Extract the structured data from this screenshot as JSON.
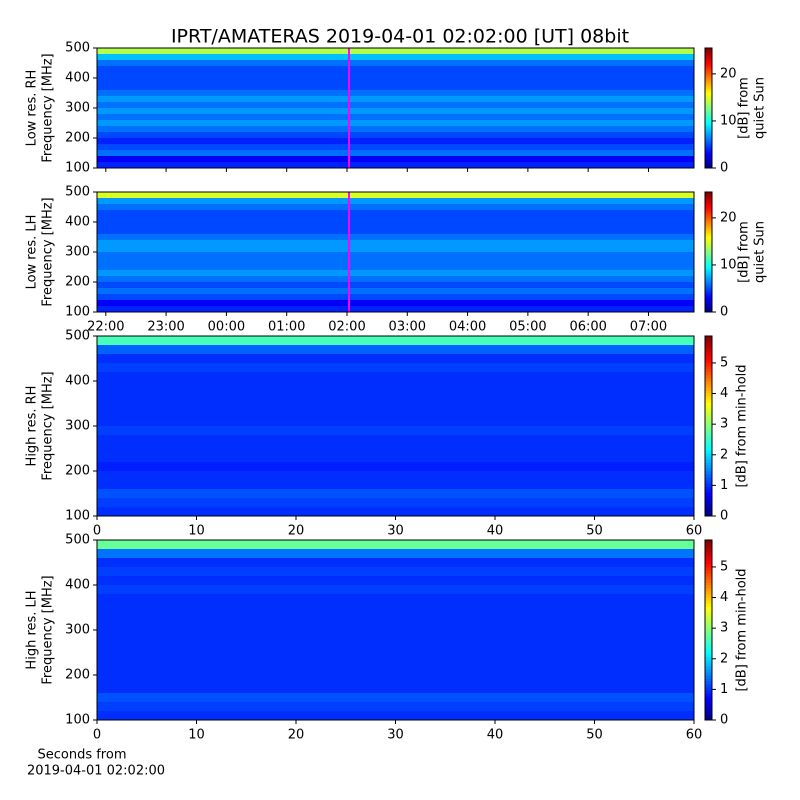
{
  "title": "IPRT/AMATERAS 2019-04-01 02:02:00 [UT]   08bit",
  "chart_data": [
    {
      "type": "heatmap",
      "ylabel": [
        "Low res. RH",
        "Frequency [MHz]"
      ],
      "xlim": [
        21.854,
        31.755
      ],
      "xticks": [
        22,
        23,
        24,
        25,
        26,
        27,
        28,
        29,
        30,
        31
      ],
      "ylim": [
        100,
        500
      ],
      "yticks": [
        100,
        200,
        300,
        400,
        500
      ],
      "y": [
        110,
        130,
        150,
        170,
        190,
        210,
        230,
        250,
        270,
        290,
        310,
        330,
        350,
        370,
        390,
        410,
        430,
        450,
        470,
        490
      ],
      "values": [
        4,
        3,
        6,
        5,
        4,
        5,
        6,
        7,
        6,
        7,
        6,
        7,
        6,
        5,
        5,
        5,
        5,
        6,
        8,
        14
      ],
      "marker_x": 26.033,
      "marker_color": "#ff00ff",
      "clim": [
        0,
        25.5
      ],
      "cticks": [
        0,
        10,
        20
      ],
      "clabel": [
        "[dB] from",
        "quiet Sun"
      ]
    },
    {
      "type": "heatmap",
      "ylabel": [
        "Low res. LH",
        "Frequency [MHz]"
      ],
      "xlim": [
        21.854,
        31.755
      ],
      "xticks": [
        {
          "value": 22,
          "label": "22:00"
        },
        {
          "value": 23,
          "label": "23:00"
        },
        {
          "value": 24,
          "label": "00:00"
        },
        {
          "value": 25,
          "label": "01:00"
        },
        {
          "value": 26,
          "label": "02:00"
        },
        {
          "value": 27,
          "label": "03:00"
        },
        {
          "value": 28,
          "label": "04:00"
        },
        {
          "value": 29,
          "label": "05:00"
        },
        {
          "value": 30,
          "label": "06:00"
        },
        {
          "value": 31,
          "label": "07:00"
        }
      ],
      "ylim": [
        100,
        500
      ],
      "yticks": [
        100,
        200,
        300,
        400,
        500
      ],
      "y": [
        110,
        130,
        150,
        170,
        190,
        210,
        230,
        250,
        270,
        290,
        310,
        330,
        350,
        370,
        390,
        410,
        430,
        450,
        470,
        490
      ],
      "values": [
        4,
        3,
        5,
        6,
        5,
        6,
        7,
        6,
        6,
        6,
        7,
        7,
        6,
        5,
        5,
        5,
        5,
        6,
        7,
        15
      ],
      "marker_x": 26.033,
      "marker_color": "#ff00ff",
      "clim": [
        0,
        25.5
      ],
      "cticks": [
        0,
        10,
        20
      ],
      "clabel": [
        "[dB] from",
        "quiet Sun"
      ]
    },
    {
      "type": "heatmap",
      "ylabel": [
        "High res. RH",
        "Frequency [MHz]"
      ],
      "xlim": [
        0,
        60
      ],
      "xticks": [
        0,
        10,
        20,
        30,
        40,
        50,
        60
      ],
      "ylim": [
        100,
        500
      ],
      "yticks": [
        100,
        200,
        300,
        400,
        500
      ],
      "y": [
        110,
        130,
        150,
        170,
        190,
        210,
        230,
        250,
        270,
        290,
        310,
        330,
        350,
        370,
        390,
        410,
        430,
        450,
        470,
        490
      ],
      "values": [
        1.0,
        1.1,
        1.2,
        1.0,
        1.0,
        0.9,
        1.0,
        1.0,
        1.0,
        1.1,
        1.0,
        1.0,
        1.0,
        1.0,
        1.0,
        1.0,
        1.1,
        1.0,
        1.3,
        2.6
      ],
      "clim": [
        0,
        5.88
      ],
      "cticks": [
        0,
        1,
        2,
        3,
        4,
        5
      ],
      "clabel": [
        "[dB] from min-hold"
      ]
    },
    {
      "type": "heatmap",
      "ylabel": [
        "High res. LH",
        "Frequency [MHz]"
      ],
      "xlabel": [
        "Seconds from",
        "2019-04-01 02:02:00"
      ],
      "xlim": [
        0,
        60
      ],
      "xticks": [
        0,
        10,
        20,
        30,
        40,
        50,
        60
      ],
      "ylim": [
        100,
        500
      ],
      "yticks": [
        100,
        200,
        300,
        400,
        500
      ],
      "y": [
        110,
        130,
        150,
        170,
        190,
        210,
        230,
        250,
        270,
        290,
        310,
        330,
        350,
        370,
        390,
        410,
        430,
        450,
        470,
        490
      ],
      "values": [
        1.0,
        1.1,
        1.2,
        1.0,
        1.0,
        1.0,
        1.0,
        1.0,
        1.0,
        1.0,
        1.0,
        1.0,
        1.0,
        1.0,
        1.1,
        1.0,
        1.1,
        1.0,
        1.4,
        2.8
      ],
      "clim": [
        0,
        5.88
      ],
      "cticks": [
        0,
        1,
        2,
        3,
        4,
        5
      ],
      "clabel": [
        "[dB] from min-hold"
      ]
    }
  ]
}
